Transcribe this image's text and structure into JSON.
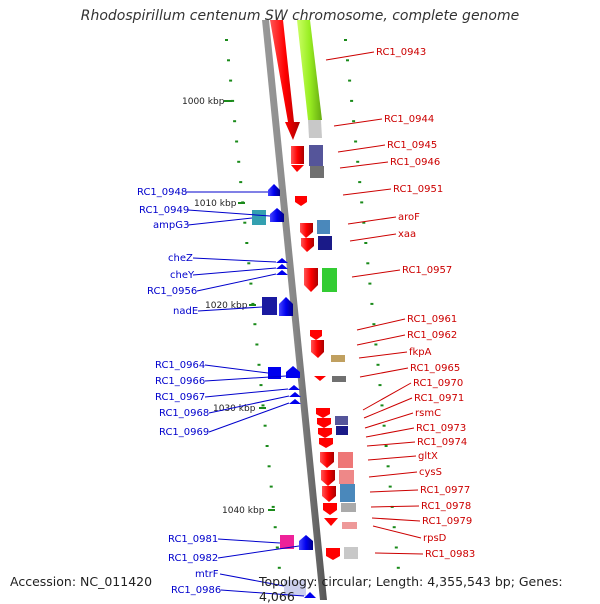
{
  "title": "Rhodospirillum centenum SW chromosome, complete genome",
  "footer": {
    "accession": "Accession: NC_011420",
    "topology": "Topology: circular; Length: 4,355,543 bp; Genes: 4,066"
  },
  "scale_labels": [
    "1000 kbp",
    "1010 kbp",
    "1020 kbp",
    "1030 kbp",
    "1040 kbp"
  ],
  "colors": {
    "forward": "#ff0000",
    "reverse": "#0000ee",
    "backbone": "#808080",
    "tick": "#1a8a1a",
    "cog_green": "#99ee22",
    "cog_lightgray": "#c8c8c8",
    "cog_purple": "#55559a",
    "cog_darkgray": "#707070",
    "cog_steelblue": "#4a88bb",
    "cog_navy": "#1a1a88",
    "cog_lime": "#33cc33",
    "cog_teal": "#33a0b0",
    "cog_khaki": "#c0a060",
    "cog_pink": "#ee7777",
    "cog_magenta": "#ee2299",
    "cog_lightpink": "#ee9999"
  },
  "left_labels": [
    "RC1_0948",
    "RC1_0949",
    "ampG3",
    "cheZ",
    "cheY",
    "RC1_0956",
    "nadE",
    "RC1_0964",
    "RC1_0966",
    "RC1_0967",
    "RC1_0968",
    "RC1_0969",
    "RC1_0981",
    "RC1_0982",
    "mtrF",
    "RC1_0986"
  ],
  "right_labels": [
    "RC1_0943",
    "RC1_0944",
    "RC1_0945",
    "RC1_0946",
    "RC1_0951",
    "aroF",
    "xaa",
    "RC1_0957",
    "RC1_0961",
    "RC1_0962",
    "fkpA",
    "RC1_0965",
    "RC1_0970",
    "RC1_0971",
    "rsmC",
    "RC1_0973",
    "RC1_0974",
    "gltX",
    "cysS",
    "RC1_0977",
    "RC1_0978",
    "RC1_0979",
    "rpsD",
    "RC1_0983"
  ]
}
